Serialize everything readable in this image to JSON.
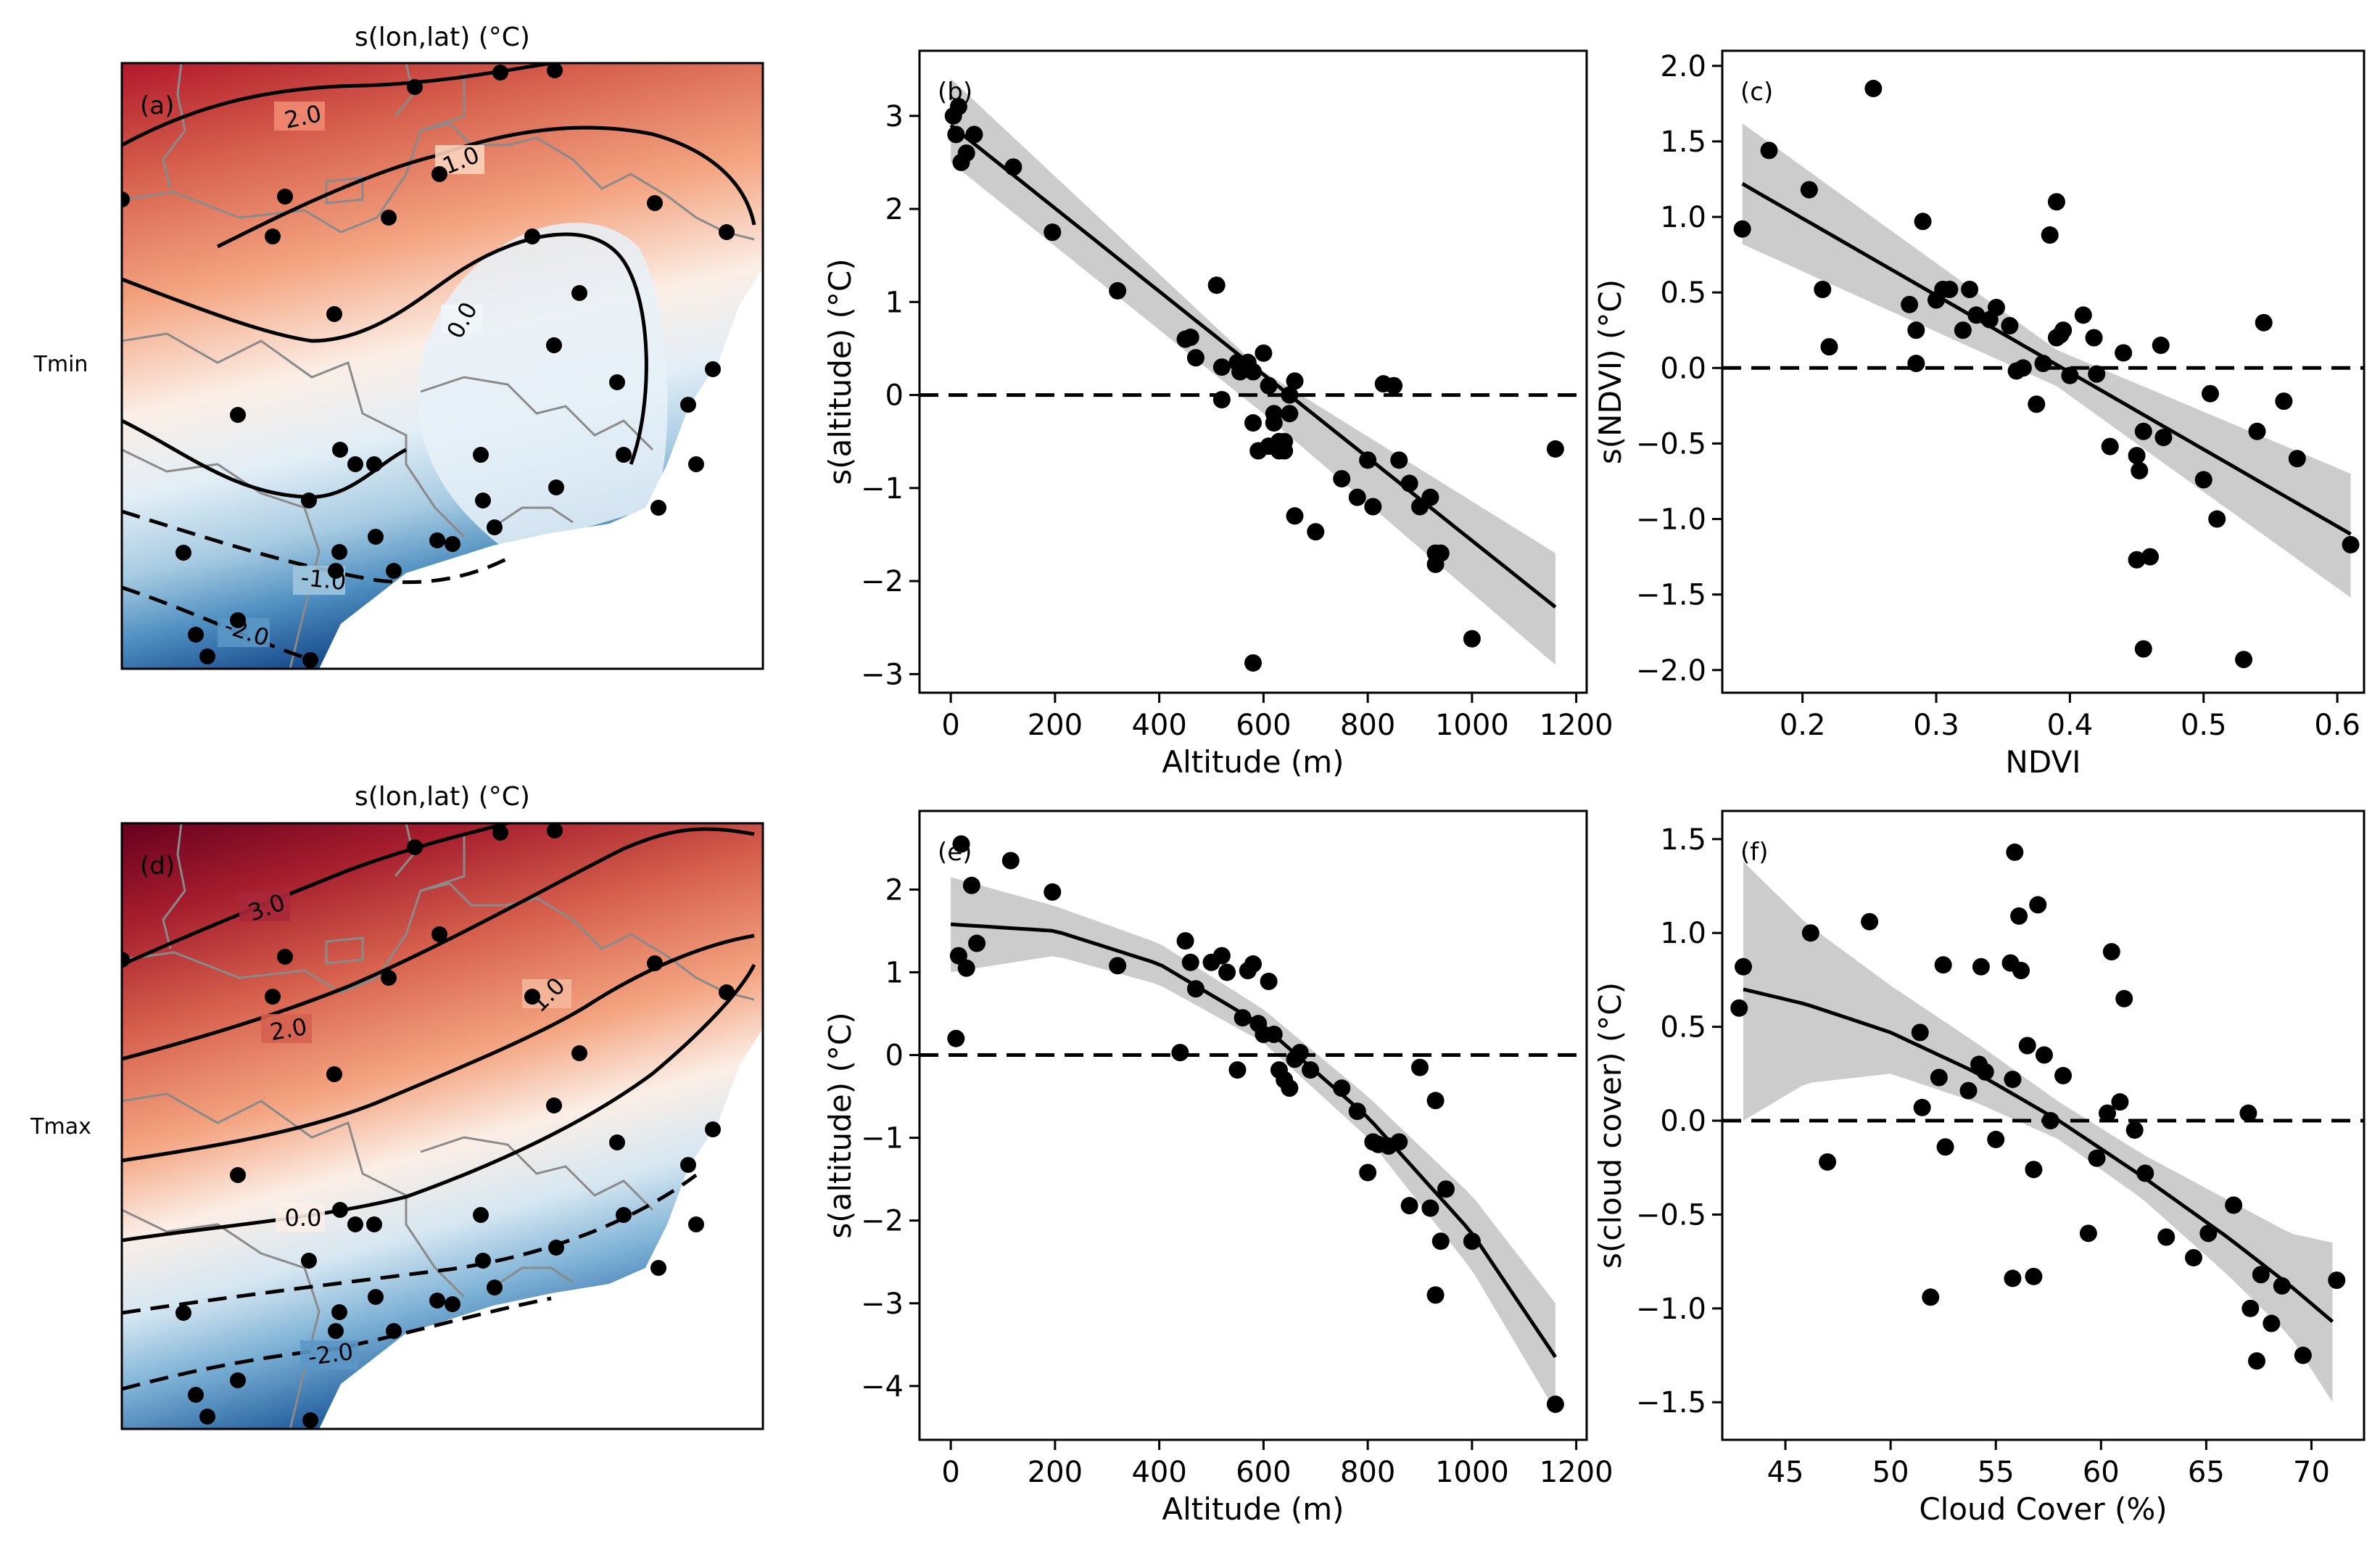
{
  "row_labels": [
    "Tmin",
    "Tmax"
  ],
  "map_panels": [
    {
      "id": "a",
      "label": "(a)",
      "title": "s(lon,lat) (°C)",
      "contours": [
        {
          "label": "2.0",
          "style": "solid"
        },
        {
          "label": "1.0",
          "style": "solid"
        },
        {
          "label": "0.0",
          "style": "solid"
        },
        {
          "label": "-1.0",
          "style": "dashed"
        },
        {
          "label": "-2.0",
          "style": "dashed"
        }
      ]
    },
    {
      "id": "d",
      "label": "(d)",
      "title": "s(lon,lat) (°C)",
      "contours": [
        {
          "label": "3.0",
          "style": "solid"
        },
        {
          "label": "2.0",
          "style": "solid"
        },
        {
          "label": "1.0",
          "style": "solid"
        },
        {
          "label": "0.0",
          "style": "solid"
        },
        {
          "label": "-2.0",
          "style": "dashed"
        }
      ]
    }
  ],
  "chart_data": [
    {
      "id": "b",
      "type": "scatter",
      "label": "(b)",
      "xlabel": "Altitude (m)",
      "ylabel": "s(altitude) (°C)",
      "xlim": [
        -60,
        1220
      ],
      "ylim": [
        -3.2,
        3.7
      ],
      "xticks": [
        0,
        200,
        400,
        600,
        800,
        1000,
        1200
      ],
      "yticks": [
        -3,
        -2,
        -1,
        0,
        1,
        2,
        3
      ],
      "x": [
        5,
        10,
        15,
        20,
        45,
        30,
        120,
        195,
        320,
        450,
        460,
        470,
        510,
        520,
        550,
        555,
        570,
        580,
        600,
        610,
        620,
        630,
        640,
        650,
        660,
        580,
        520,
        590,
        610,
        620,
        630,
        640,
        650,
        660,
        700,
        750,
        780,
        800,
        810,
        830,
        850,
        860,
        880,
        900,
        920,
        930,
        940,
        1000,
        1160,
        930,
        580
      ],
      "y": [
        3.0,
        2.8,
        3.1,
        2.5,
        2.8,
        2.6,
        2.45,
        1.75,
        1.12,
        0.6,
        0.62,
        0.4,
        1.18,
        -0.05,
        0.35,
        0.25,
        0.35,
        0.25,
        0.45,
        0.1,
        -0.3,
        -0.5,
        -0.6,
        0.0,
        0.15,
        -0.3,
        0.3,
        -0.6,
        -0.55,
        -0.2,
        -0.6,
        -0.5,
        -0.2,
        -1.3,
        -1.47,
        -0.9,
        -1.1,
        -0.7,
        -1.2,
        0.12,
        0.1,
        -0.7,
        -0.95,
        -1.2,
        -1.1,
        -1.7,
        -1.7,
        -2.62,
        -0.58,
        -1.82,
        -2.88
      ],
      "fit_x": [
        0,
        1160
      ],
      "fit_y": [
        2.9,
        -2.28
      ],
      "ci_low_x": [
        0,
        600,
        1160
      ],
      "ci_low": [
        2.5,
        -0.2,
        -2.9
      ],
      "ci_high": [
        3.4,
        0.25,
        -1.7
      ],
      "hline": 0
    },
    {
      "id": "c",
      "type": "scatter",
      "label": "(c)",
      "xlabel": "NDVI",
      "ylabel": "s(NDVI) (°C)",
      "xlim": [
        0.14,
        0.62
      ],
      "ylim": [
        -2.15,
        2.1
      ],
      "xticks": [
        0.2,
        0.3,
        0.4,
        0.5,
        0.6
      ],
      "xticklabels": [
        "0.2",
        "0.3",
        "0.4",
        "0.5",
        "0.6"
      ],
      "yticks": [
        -2.0,
        -1.5,
        -1.0,
        -0.5,
        0.0,
        0.5,
        1.0,
        1.5,
        2.0
      ],
      "yticklabels": [
        "−2.0",
        "−1.5",
        "−1.0",
        "−0.5",
        "0.0",
        "0.5",
        "1.0",
        "1.5",
        "2.0"
      ],
      "x": [
        0.155,
        0.175,
        0.205,
        0.215,
        0.22,
        0.253,
        0.285,
        0.28,
        0.29,
        0.285,
        0.305,
        0.3,
        0.31,
        0.32,
        0.325,
        0.34,
        0.33,
        0.345,
        0.355,
        0.36,
        0.365,
        0.375,
        0.38,
        0.385,
        0.39,
        0.393,
        0.39,
        0.395,
        0.4,
        0.41,
        0.418,
        0.42,
        0.43,
        0.44,
        0.45,
        0.452,
        0.455,
        0.46,
        0.468,
        0.47,
        0.5,
        0.51,
        0.505,
        0.53,
        0.54,
        0.545,
        0.56,
        0.57,
        0.61,
        0.45,
        0.455
      ],
      "y": [
        0.92,
        1.44,
        1.18,
        0.52,
        0.14,
        1.85,
        0.25,
        0.42,
        0.97,
        0.03,
        0.52,
        0.45,
        0.52,
        0.25,
        0.52,
        0.32,
        0.35,
        0.4,
        0.28,
        -0.02,
        0.0,
        -0.24,
        0.03,
        0.88,
        1.1,
        0.22,
        0.2,
        0.25,
        -0.05,
        0.35,
        0.2,
        -0.04,
        -0.52,
        0.1,
        -0.58,
        -0.68,
        -0.42,
        -1.25,
        0.15,
        -0.46,
        -0.74,
        -1.0,
        -0.17,
        -1.93,
        -0.42,
        0.3,
        -0.22,
        -0.6,
        -1.17,
        -1.27,
        -1.86
      ],
      "fit_x": [
        0.155,
        0.61
      ],
      "fit_y": [
        1.22,
        -1.1
      ],
      "ci_low_x": [
        0.155,
        0.39,
        0.61
      ],
      "ci_low": [
        0.82,
        -0.12,
        -1.52
      ],
      "ci_high": [
        1.62,
        0.12,
        -0.7
      ],
      "hline": 0
    },
    {
      "id": "e",
      "type": "scatter",
      "label": "(e)",
      "xlabel": "Altitude (m)",
      "ylabel": "s(altitude) (°C)",
      "xlim": [
        -60,
        1220
      ],
      "ylim": [
        -4.65,
        2.95
      ],
      "xticks": [
        0,
        200,
        400,
        600,
        800,
        1000,
        1200
      ],
      "yticks": [
        -4,
        -3,
        -2,
        -1,
        0,
        1,
        2
      ],
      "x": [
        10,
        15,
        20,
        30,
        40,
        50,
        115,
        195,
        320,
        440,
        450,
        460,
        470,
        500,
        520,
        530,
        550,
        560,
        570,
        580,
        590,
        600,
        610,
        620,
        630,
        640,
        650,
        660,
        670,
        690,
        750,
        780,
        800,
        810,
        820,
        840,
        860,
        880,
        900,
        920,
        930,
        940,
        1000,
        1160,
        930,
        950
      ],
      "y": [
        0.2,
        1.2,
        2.55,
        1.05,
        2.05,
        1.35,
        2.35,
        1.97,
        1.08,
        0.03,
        1.38,
        1.12,
        0.8,
        1.12,
        1.2,
        1.0,
        -0.18,
        0.45,
        1.02,
        1.1,
        0.38,
        0.25,
        0.89,
        0.25,
        -0.18,
        -0.3,
        -0.4,
        -0.05,
        0.03,
        -0.18,
        -0.4,
        -0.68,
        -1.42,
        -1.05,
        -1.08,
        -1.1,
        -1.05,
        -1.82,
        -0.15,
        -1.85,
        -0.55,
        -2.25,
        -2.25,
        -4.22,
        -2.9,
        -1.62
      ],
      "fit_x": [
        0,
        200,
        400,
        600,
        800,
        1000,
        1160
      ],
      "fit_y": [
        1.58,
        1.5,
        1.1,
        0.35,
        -0.75,
        -2.15,
        -3.65
      ],
      "ci_low_x": [
        0,
        200,
        400,
        600,
        800,
        1000,
        1160
      ],
      "ci_low": [
        1.0,
        1.2,
        0.85,
        0.15,
        -1.0,
        -2.6,
        -4.3
      ],
      "ci_high": [
        2.15,
        1.8,
        1.35,
        0.55,
        -0.5,
        -1.7,
        -3.0
      ],
      "hline": 0
    },
    {
      "id": "f",
      "type": "scatter",
      "label": "(f)",
      "xlabel": "Cloud Cover (%)",
      "ylabel": "s(cloud cover) (°C)",
      "xlim": [
        42,
        72.5
      ],
      "ylim": [
        -1.7,
        1.65
      ],
      "xticks": [
        45,
        50,
        55,
        60,
        65,
        70
      ],
      "yticks": [
        -1.5,
        -1.0,
        -0.5,
        0.0,
        0.5,
        1.0,
        1.5
      ],
      "yticklabels": [
        "−1.5",
        "−1.0",
        "−0.5",
        "0.0",
        "0.5",
        "1.0",
        "1.5"
      ],
      "x": [
        42.8,
        43.0,
        46.2,
        47.0,
        49.0,
        51.5,
        51.4,
        51.9,
        52.3,
        52.5,
        52.6,
        53.7,
        54.2,
        54.3,
        54.5,
        55.0,
        55.7,
        55.8,
        55.9,
        56.1,
        56.2,
        56.5,
        56.8,
        57.0,
        57.3,
        57.6,
        58.2,
        59.4,
        59.8,
        60.3,
        60.5,
        60.9,
        61.1,
        61.6,
        62.1,
        63.1,
        64.4,
        65.1,
        66.3,
        67.0,
        67.1,
        67.4,
        67.6,
        68.1,
        68.6,
        69.6,
        71.2,
        55.8,
        56.8
      ],
      "y": [
        0.6,
        0.82,
        1.0,
        -0.22,
        1.06,
        0.07,
        0.47,
        -0.94,
        0.23,
        0.83,
        -0.14,
        0.16,
        0.3,
        0.82,
        0.26,
        -0.1,
        0.84,
        0.22,
        1.43,
        1.09,
        0.8,
        0.4,
        -0.26,
        1.15,
        0.35,
        0.0,
        0.24,
        -0.6,
        -0.2,
        0.04,
        0.9,
        0.1,
        0.65,
        -0.05,
        -0.28,
        -0.62,
        -0.73,
        -0.6,
        -0.45,
        0.04,
        -1.0,
        -1.28,
        -0.82,
        -1.08,
        -0.88,
        -1.25,
        -0.85,
        -0.84,
        -0.83
      ],
      "fit_x": [
        43,
        46,
        50,
        54,
        58,
        62,
        66,
        69,
        71
      ],
      "fit_y": [
        0.7,
        0.62,
        0.47,
        0.26,
        0.0,
        -0.3,
        -0.62,
        -0.88,
        -1.07
      ],
      "ci_low_x": [
        43,
        46,
        50,
        54,
        58,
        62,
        66,
        69,
        71
      ],
      "ci_low": [
        0.0,
        0.2,
        0.25,
        0.1,
        -0.1,
        -0.42,
        -0.82,
        -1.15,
        -1.5
      ],
      "ci_high": [
        1.38,
        1.05,
        0.72,
        0.42,
        0.1,
        -0.18,
        -0.42,
        -0.6,
        -0.65
      ],
      "hline": 0
    }
  ]
}
